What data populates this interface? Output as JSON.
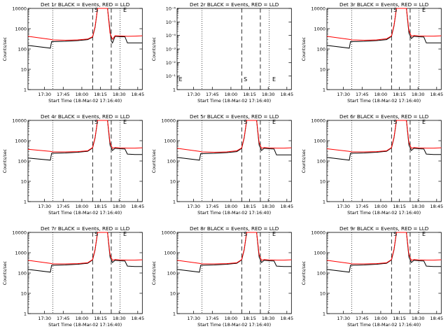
{
  "xlabel": "Start Time (18-Mar-02 17:16:40)",
  "ylabel": "Counts/sec",
  "legend_suffix": "BLACK = Events, RED = LLD",
  "colors": {
    "events": "#000000",
    "lld": "#ff0000",
    "axes": "#000000"
  },
  "chart_data": [
    {
      "type": "line",
      "title": "Det 1r BLACK = Events, RED = LLD",
      "ylog": true,
      "ylim": [
        1,
        10000
      ],
      "yticks": [
        "1",
        "10",
        "100",
        "1000",
        "10000"
      ],
      "xticks": [
        "17:30",
        "17:45",
        "18:00",
        "18:15",
        "18:30",
        "18:45"
      ],
      "xlim_min": [
        0,
        92
      ],
      "markers": [
        {
          "label": "S",
          "min": 55
        }
      ],
      "markers2": [
        {
          "label": "E",
          "min": 78
        }
      ],
      "dotted_min": [
        20,
        74
      ],
      "dashed_min": [
        52,
        67
      ],
      "series": [
        {
          "name": "Events",
          "x": [
            0,
            18,
            19,
            30,
            40,
            48,
            52,
            54,
            56,
            58,
            60,
            62,
            64,
            67,
            68,
            70,
            74,
            78,
            80,
            82,
            86,
            92
          ],
          "y": [
            150,
            110,
            230,
            240,
            260,
            290,
            380,
            1200,
            10000,
            10000,
            10000,
            10000,
            10000,
            250,
            200,
            420,
            400,
            400,
            200,
            200,
            200,
            200
          ]
        },
        {
          "name": "LLD",
          "x": [
            0,
            18,
            20,
            30,
            40,
            48,
            52,
            54,
            56,
            58,
            60,
            62,
            64,
            66,
            68,
            70,
            74,
            80,
            86,
            92
          ],
          "y": [
            420,
            300,
            280,
            270,
            280,
            310,
            400,
            1300,
            10000,
            10000,
            10000,
            10000,
            10000,
            600,
            300,
            450,
            440,
            420,
            430,
            450
          ]
        }
      ]
    },
    {
      "type": "line",
      "title": "Det 2r BLACK = Events, RED = LLD",
      "ylog": true,
      "ylim": [
        1,
        1e-06
      ],
      "yticks": [
        "1",
        "10⁻¹",
        "10⁻²",
        "10⁻³",
        "10⁻⁴",
        "10⁻⁵",
        "10⁻⁶"
      ],
      "xticks": [
        "17:30",
        "17:45",
        "18:00",
        "18:15",
        "18:30",
        "18:45"
      ],
      "xlim_min": [
        0,
        92
      ],
      "markers": [
        {
          "label": "S",
          "min": 55
        }
      ],
      "markers2": [
        {
          "label": "E",
          "min": 78
        }
      ],
      "dotted_min": [
        20,
        74
      ],
      "dashed_min": [
        52,
        67
      ],
      "series": []
    },
    {
      "type": "line",
      "title": "Det 3r BLACK = Events, RED = LLD",
      "ylog": true,
      "ylim": [
        1,
        10000
      ],
      "yticks": [
        "1",
        "10",
        "100",
        "1000",
        "10000"
      ],
      "xticks": [
        "17:30",
        "17:45",
        "18:00",
        "18:15",
        "18:30",
        "18:45"
      ],
      "xlim_min": [
        0,
        92
      ],
      "markers": [
        {
          "label": "S",
          "min": 55
        }
      ],
      "markers2": [
        {
          "label": "E",
          "min": 78
        }
      ],
      "dotted_min": [
        20,
        74
      ],
      "dashed_min": [
        52,
        67
      ],
      "series": [
        {
          "name": "Events",
          "x": [
            0,
            18,
            19,
            30,
            40,
            48,
            52,
            54,
            56,
            58,
            60,
            62,
            64,
            66,
            68,
            70,
            74,
            78,
            80,
            86,
            92
          ],
          "y": [
            150,
            110,
            230,
            240,
            260,
            290,
            420,
            1400,
            10000,
            10000,
            10000,
            10000,
            10000,
            600,
            330,
            420,
            400,
            390,
            200,
            200,
            200
          ]
        },
        {
          "name": "LLD",
          "x": [
            0,
            18,
            20,
            30,
            40,
            48,
            52,
            54,
            56,
            58,
            60,
            62,
            64,
            66,
            68,
            70,
            74,
            80,
            86,
            92
          ],
          "y": [
            420,
            300,
            280,
            270,
            280,
            320,
            440,
            1500,
            10000,
            10000,
            10000,
            10000,
            10000,
            800,
            420,
            460,
            440,
            430,
            430,
            450
          ]
        }
      ]
    },
    {
      "type": "line",
      "title": "Det 4r BLACK = Events, RED = LLD",
      "ylog": true,
      "ylim": [
        1,
        10000
      ],
      "yticks": [
        "1",
        "10",
        "100",
        "1000",
        "10000"
      ],
      "xticks": [
        "17:30",
        "17:45",
        "18:00",
        "18:15",
        "18:30",
        "18:45"
      ],
      "xlim_min": [
        0,
        92
      ],
      "markers": [
        {
          "label": "S",
          "min": 55
        }
      ],
      "markers2": [
        {
          "label": "E",
          "min": 78
        }
      ],
      "dotted_min": [
        20,
        74
      ],
      "dashed_min": [
        52,
        67
      ],
      "series": [
        {
          "name": "Events",
          "x": [
            0,
            18,
            19,
            30,
            40,
            48,
            52,
            54,
            56,
            58,
            60,
            62,
            64,
            66,
            68,
            70,
            74,
            78,
            80,
            86,
            92
          ],
          "y": [
            140,
            110,
            240,
            250,
            270,
            300,
            440,
            1400,
            10000,
            10000,
            10000,
            10000,
            10000,
            600,
            330,
            420,
            400,
            390,
            220,
            210,
            210
          ]
        },
        {
          "name": "LLD",
          "x": [
            0,
            18,
            20,
            30,
            40,
            48,
            52,
            54,
            56,
            58,
            60,
            62,
            64,
            66,
            68,
            70,
            74,
            80,
            86,
            92
          ],
          "y": [
            380,
            300,
            280,
            280,
            290,
            320,
            460,
            1500,
            10000,
            10000,
            10000,
            10000,
            10000,
            800,
            420,
            460,
            440,
            430,
            430,
            450
          ]
        }
      ]
    },
    {
      "type": "line",
      "title": "Det 5r BLACK = Events, RED = LLD",
      "ylog": true,
      "ylim": [
        1,
        10000
      ],
      "yticks": [
        "1",
        "10",
        "100",
        "1000",
        "10000"
      ],
      "xticks": [
        "17:30",
        "17:45",
        "18:00",
        "18:15",
        "18:30",
        "18:45"
      ],
      "xlim_min": [
        0,
        92
      ],
      "markers": [
        {
          "label": "S",
          "min": 55
        }
      ],
      "markers2": [
        {
          "label": "E",
          "min": 78
        }
      ],
      "dotted_min": [
        20,
        74
      ],
      "dashed_min": [
        52,
        67
      ],
      "series": [
        {
          "name": "Events",
          "x": [
            0,
            18,
            19,
            30,
            40,
            48,
            52,
            54,
            56,
            58,
            60,
            62,
            64,
            66,
            68,
            70,
            74,
            78,
            80,
            86,
            92
          ],
          "y": [
            150,
            110,
            230,
            240,
            260,
            290,
            420,
            1400,
            10000,
            10000,
            10000,
            10000,
            10000,
            600,
            330,
            420,
            400,
            390,
            200,
            200,
            200
          ]
        },
        {
          "name": "LLD",
          "x": [
            0,
            18,
            20,
            30,
            40,
            48,
            52,
            54,
            56,
            58,
            60,
            62,
            64,
            66,
            68,
            70,
            74,
            80,
            86,
            92
          ],
          "y": [
            420,
            300,
            280,
            270,
            280,
            320,
            440,
            1500,
            10000,
            10000,
            10000,
            10000,
            10000,
            800,
            420,
            460,
            440,
            430,
            430,
            450
          ]
        }
      ]
    },
    {
      "type": "line",
      "title": "Det 6r BLACK = Events, RED = LLD",
      "ylog": true,
      "ylim": [
        1,
        10000
      ],
      "yticks": [
        "1",
        "10",
        "100",
        "1000",
        "10000"
      ],
      "xticks": [
        "17:30",
        "17:45",
        "18:00",
        "18:15",
        "18:30",
        "18:45"
      ],
      "xlim_min": [
        0,
        92
      ],
      "markers": [
        {
          "label": "S",
          "min": 55
        }
      ],
      "markers2": [
        {
          "label": "E",
          "min": 78
        }
      ],
      "dotted_min": [
        20,
        74
      ],
      "dashed_min": [
        52,
        67
      ],
      "series": [
        {
          "name": "Events",
          "x": [
            0,
            18,
            19,
            30,
            40,
            48,
            52,
            54,
            56,
            58,
            60,
            62,
            64,
            66,
            68,
            70,
            74,
            78,
            80,
            86,
            92
          ],
          "y": [
            150,
            110,
            240,
            250,
            270,
            300,
            440,
            1400,
            10000,
            10000,
            10000,
            10000,
            10000,
            600,
            330,
            420,
            400,
            390,
            220,
            210,
            210
          ]
        },
        {
          "name": "LLD",
          "x": [
            0,
            18,
            20,
            30,
            40,
            48,
            52,
            54,
            56,
            58,
            60,
            62,
            64,
            66,
            68,
            70,
            74,
            80,
            86,
            92
          ],
          "y": [
            400,
            300,
            280,
            280,
            290,
            320,
            460,
            1500,
            10000,
            10000,
            10000,
            10000,
            10000,
            800,
            420,
            460,
            440,
            430,
            430,
            450
          ]
        }
      ]
    },
    {
      "type": "line",
      "title": "Det 7r BLACK = Events, RED = LLD",
      "ylog": true,
      "ylim": [
        1,
        10000
      ],
      "yticks": [
        "1",
        "10",
        "100",
        "1000",
        "10000"
      ],
      "xticks": [
        "17:30",
        "17:45",
        "18:00",
        "18:15",
        "18:30",
        "18:45"
      ],
      "xlim_min": [
        0,
        92
      ],
      "markers": [
        {
          "label": "S",
          "min": 55
        }
      ],
      "markers2": [
        {
          "label": "E",
          "min": 78
        }
      ],
      "dotted_min": [
        20,
        74
      ],
      "dashed_min": [
        52,
        67
      ],
      "series": [
        {
          "name": "Events",
          "x": [
            0,
            18,
            19,
            30,
            40,
            48,
            52,
            54,
            56,
            58,
            60,
            62,
            64,
            66,
            68,
            70,
            74,
            78,
            80,
            86,
            92
          ],
          "y": [
            150,
            110,
            240,
            250,
            270,
            300,
            440,
            1400,
            10000,
            10000,
            10000,
            10000,
            10000,
            600,
            330,
            420,
            400,
            390,
            220,
            210,
            210
          ]
        },
        {
          "name": "LLD",
          "x": [
            0,
            18,
            20,
            30,
            40,
            48,
            52,
            54,
            56,
            58,
            60,
            62,
            64,
            66,
            68,
            70,
            74,
            80,
            86,
            92
          ],
          "y": [
            420,
            300,
            280,
            280,
            290,
            320,
            460,
            1500,
            10000,
            10000,
            10000,
            10000,
            10000,
            800,
            420,
            460,
            440,
            430,
            430,
            450
          ]
        }
      ]
    },
    {
      "type": "line",
      "title": "Det 8r BLACK = Events, RED = LLD",
      "ylog": true,
      "ylim": [
        1,
        10000
      ],
      "yticks": [
        "1",
        "10",
        "100",
        "1000",
        "10000"
      ],
      "xticks": [
        "17:30",
        "17:45",
        "18:00",
        "18:15",
        "18:30",
        "18:45"
      ],
      "xlim_min": [
        0,
        92
      ],
      "markers": [
        {
          "label": "S",
          "min": 55
        }
      ],
      "markers2": [
        {
          "label": "E",
          "min": 78
        }
      ],
      "dotted_min": [
        20,
        74
      ],
      "dashed_min": [
        52,
        67
      ],
      "series": [
        {
          "name": "Events",
          "x": [
            0,
            18,
            19,
            30,
            40,
            48,
            52,
            54,
            56,
            58,
            60,
            62,
            64,
            66,
            68,
            70,
            74,
            78,
            80,
            86,
            92
          ],
          "y": [
            150,
            110,
            240,
            250,
            270,
            300,
            440,
            1400,
            10000,
            10000,
            10000,
            10000,
            10000,
            600,
            330,
            420,
            400,
            390,
            220,
            210,
            210
          ]
        },
        {
          "name": "LLD",
          "x": [
            0,
            18,
            20,
            30,
            40,
            48,
            52,
            54,
            56,
            58,
            60,
            62,
            64,
            66,
            68,
            70,
            74,
            80,
            86,
            92
          ],
          "y": [
            420,
            300,
            280,
            280,
            290,
            320,
            460,
            1500,
            10000,
            10000,
            10000,
            10000,
            10000,
            800,
            420,
            460,
            440,
            430,
            430,
            450
          ]
        }
      ]
    },
    {
      "type": "line",
      "title": "Det 9r BLACK = Events, RED = LLD",
      "ylog": true,
      "ylim": [
        1,
        10000
      ],
      "yticks": [
        "1",
        "10",
        "100",
        "1000",
        "10000"
      ],
      "xticks": [
        "17:30",
        "17:45",
        "18:00",
        "18:15",
        "18:30",
        "18:45"
      ],
      "xlim_min": [
        0,
        92
      ],
      "markers": [
        {
          "label": "S",
          "min": 55
        }
      ],
      "markers2": [
        {
          "label": "E",
          "min": 78
        }
      ],
      "dotted_min": [
        20,
        74
      ],
      "dashed_min": [
        52,
        67
      ],
      "series": [
        {
          "name": "Events",
          "x": [
            0,
            18,
            19,
            30,
            40,
            48,
            52,
            54,
            56,
            58,
            60,
            62,
            64,
            66,
            68,
            70,
            74,
            78,
            80,
            86,
            92
          ],
          "y": [
            150,
            110,
            240,
            250,
            270,
            300,
            440,
            1400,
            10000,
            10000,
            10000,
            10000,
            10000,
            600,
            330,
            420,
            400,
            390,
            220,
            210,
            210
          ]
        },
        {
          "name": "LLD",
          "x": [
            0,
            18,
            20,
            30,
            40,
            48,
            52,
            54,
            56,
            58,
            60,
            62,
            64,
            66,
            68,
            70,
            74,
            80,
            86,
            92
          ],
          "y": [
            420,
            300,
            280,
            280,
            290,
            320,
            460,
            1500,
            10000,
            10000,
            10000,
            10000,
            10000,
            800,
            420,
            460,
            440,
            430,
            430,
            450
          ]
        }
      ]
    }
  ]
}
